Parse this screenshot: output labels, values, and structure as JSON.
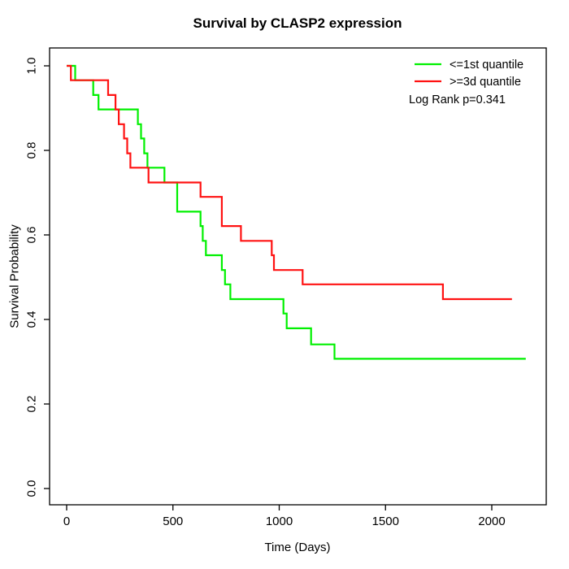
{
  "title": "Survival by CLASP2 expression",
  "x_axis": {
    "label": "Time (Days)",
    "ticks": [
      0,
      500,
      1000,
      1500,
      2000
    ]
  },
  "y_axis": {
    "label": "Survival Probability",
    "ticks": [
      "0.0",
      "0.2",
      "0.4",
      "0.6",
      "0.8",
      "1.0"
    ]
  },
  "legend": {
    "items": [
      {
        "label": "<=1st quantile",
        "color": "#00f000"
      },
      {
        "label": ">=3d quantile",
        "color": "#ff1212"
      }
    ],
    "stat_note": "Log Rank p=0.341"
  },
  "chart_data": {
    "type": "line",
    "subtype": "kaplan-meier-step",
    "title": "Survival by CLASP2 expression",
    "xlabel": "Time (Days)",
    "ylabel": "Survival Probability",
    "xlim": [
      0,
      2250
    ],
    "ylim": [
      0.0,
      1.0
    ],
    "grid": false,
    "legend_position": "top-right",
    "log_rank_p": 0.341,
    "series": [
      {
        "name": "<=1st quantile",
        "color": "#00f000",
        "end_time": 2160,
        "points": [
          [
            0,
            1.0
          ],
          [
            40,
            0.966
          ],
          [
            125,
            0.931
          ],
          [
            150,
            0.897
          ],
          [
            335,
            0.862
          ],
          [
            350,
            0.828
          ],
          [
            365,
            0.793
          ],
          [
            380,
            0.759
          ],
          [
            460,
            0.724
          ],
          [
            520,
            0.655
          ],
          [
            630,
            0.621
          ],
          [
            640,
            0.586
          ],
          [
            655,
            0.552
          ],
          [
            730,
            0.517
          ],
          [
            745,
            0.483
          ],
          [
            770,
            0.448
          ],
          [
            1020,
            0.414
          ],
          [
            1035,
            0.379
          ],
          [
            1150,
            0.341
          ],
          [
            1260,
            0.307
          ]
        ]
      },
      {
        "name": ">=3d quantile",
        "color": "#ff1212",
        "end_time": 2095,
        "points": [
          [
            0,
            1.0
          ],
          [
            20,
            0.966
          ],
          [
            195,
            0.931
          ],
          [
            230,
            0.897
          ],
          [
            245,
            0.862
          ],
          [
            270,
            0.828
          ],
          [
            285,
            0.793
          ],
          [
            300,
            0.759
          ],
          [
            385,
            0.724
          ],
          [
            630,
            0.69
          ],
          [
            730,
            0.621
          ],
          [
            820,
            0.586
          ],
          [
            965,
            0.552
          ],
          [
            975,
            0.517
          ],
          [
            1110,
            0.483
          ],
          [
            1770,
            0.448
          ]
        ]
      }
    ]
  }
}
